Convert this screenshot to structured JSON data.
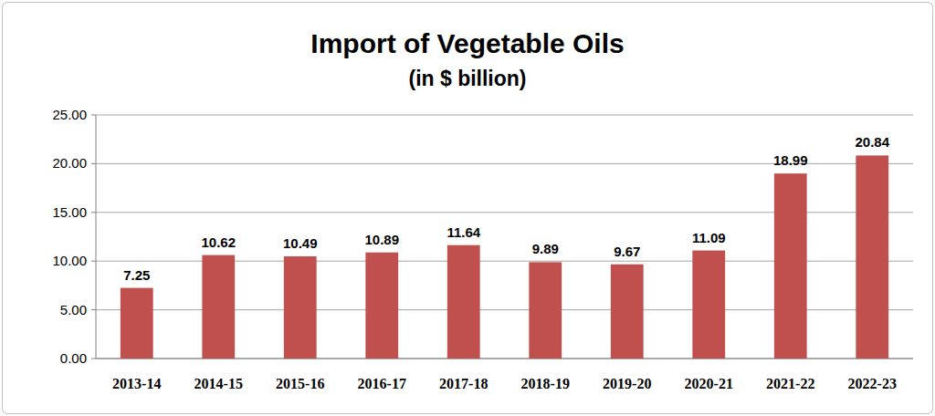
{
  "chart_data": {
    "type": "bar",
    "title": "Import of Vegetable Oils",
    "subtitle": "(in $ billion)",
    "categories": [
      "2013-14",
      "2014-15",
      "2015-16",
      "2016-17",
      "2017-18",
      "2018-19",
      "2019-20",
      "2020-21",
      "2021-22",
      "2022-23"
    ],
    "values": [
      7.25,
      10.62,
      10.49,
      10.89,
      11.64,
      9.89,
      9.67,
      11.09,
      18.99,
      20.84
    ],
    "color": "#c0504d",
    "ylim": [
      0,
      25
    ],
    "yticks": [
      {
        "value": 0,
        "label": "0.00"
      },
      {
        "value": 5,
        "label": "5.00"
      },
      {
        "value": 10,
        "label": "10.00"
      },
      {
        "value": 15,
        "label": "15.00"
      },
      {
        "value": 20,
        "label": "20.00"
      },
      {
        "value": 25,
        "label": "25.00"
      }
    ],
    "grid": true,
    "data_labels": true
  }
}
